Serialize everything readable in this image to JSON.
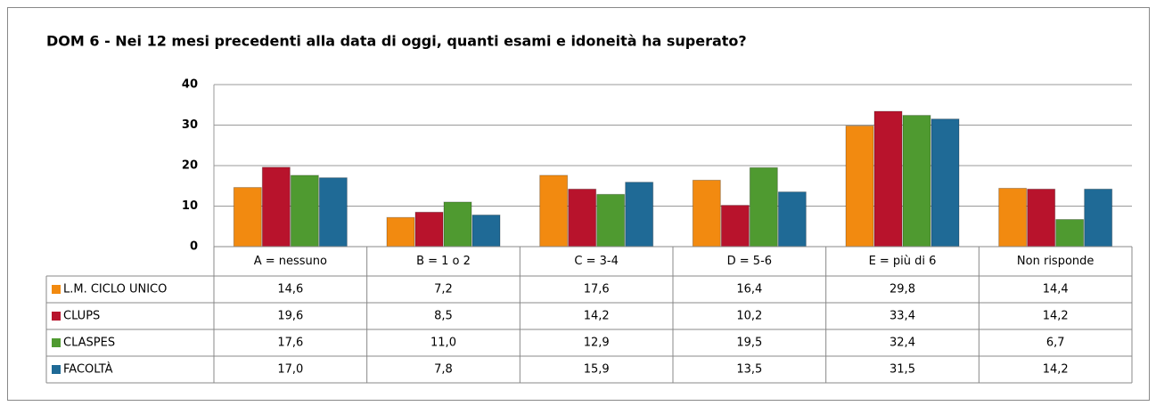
{
  "chart_data": {
    "type": "bar",
    "title": "DOM 6 - Nei 12 mesi precedenti alla data di oggi, quanti esami e idoneità ha superato?",
    "categories": [
      "A = nessuno",
      "B = 1 o 2",
      "C = 3-4",
      "D = 5-6",
      "E = più di 6",
      "Non risponde"
    ],
    "series": [
      {
        "name": "L.M. CICLO UNICO",
        "color": "#f28a10",
        "values": [
          14.6,
          7.2,
          17.6,
          16.4,
          29.8,
          14.4
        ],
        "value_labels": [
          "14,6",
          "7,2",
          "17,6",
          "16,4",
          "29,8",
          "14,4"
        ]
      },
      {
        "name": "CLUPS",
        "color": "#b8132c",
        "values": [
          19.6,
          8.5,
          14.2,
          10.2,
          33.4,
          14.2
        ],
        "value_labels": [
          "19,6",
          "8,5",
          "14,2",
          "10,2",
          "33,4",
          "14,2"
        ]
      },
      {
        "name": "CLASPES",
        "color": "#4f9a30",
        "values": [
          17.6,
          11.0,
          12.9,
          19.5,
          32.4,
          6.7
        ],
        "value_labels": [
          "17,6",
          "11,0",
          "12,9",
          "19,5",
          "32,4",
          "6,7"
        ]
      },
      {
        "name": "FACOLTÀ",
        "color": "#1f6a96",
        "values": [
          17.0,
          7.8,
          15.9,
          13.5,
          31.5,
          14.2
        ],
        "value_labels": [
          "17,0",
          "7,8",
          "15,9",
          "13,5",
          "31,5",
          "14,2"
        ]
      }
    ],
    "ylim": [
      0,
      40
    ],
    "yticks": [
      0,
      10,
      20,
      30,
      40
    ],
    "grid": true,
    "data_table": true
  }
}
